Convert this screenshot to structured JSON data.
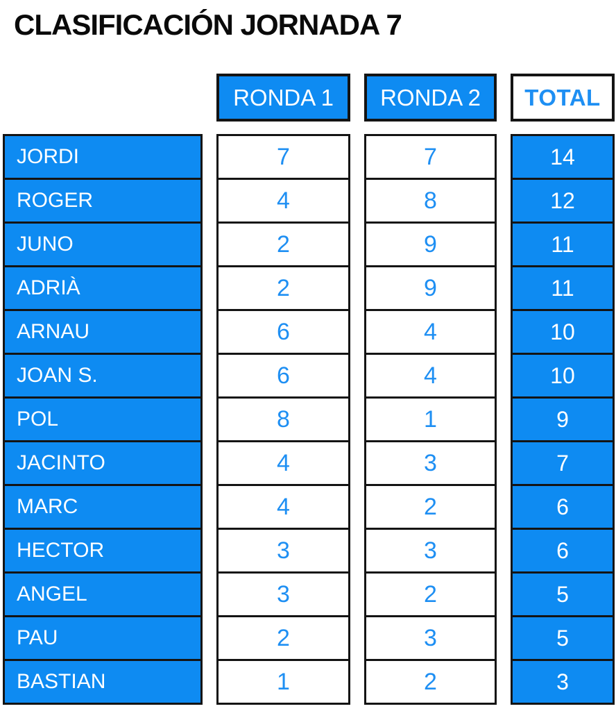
{
  "title": "CLASIFICACIÓN JORNADA 7",
  "colors": {
    "accent_blue": "#0e8bf2",
    "text_blue": "#1e8ff3",
    "border_black": "#141414",
    "white": "#ffffff"
  },
  "table": {
    "headers": {
      "ronda1": "RONDA 1",
      "ronda2": "RONDA 2",
      "total": "TOTAL"
    },
    "rows": [
      {
        "name": "JORDI",
        "ronda1": 7,
        "ronda2": 7,
        "total": 14
      },
      {
        "name": "ROGER",
        "ronda1": 4,
        "ronda2": 8,
        "total": 12
      },
      {
        "name": "JUNO",
        "ronda1": 2,
        "ronda2": 9,
        "total": 11
      },
      {
        "name": "ADRIÀ",
        "ronda1": 2,
        "ronda2": 9,
        "total": 11
      },
      {
        "name": "ARNAU",
        "ronda1": 6,
        "ronda2": 4,
        "total": 10
      },
      {
        "name": "JOAN S.",
        "ronda1": 6,
        "ronda2": 4,
        "total": 10
      },
      {
        "name": "POL",
        "ronda1": 8,
        "ronda2": 1,
        "total": 9
      },
      {
        "name": "JACINTO",
        "ronda1": 4,
        "ronda2": 3,
        "total": 7
      },
      {
        "name": "MARC",
        "ronda1": 4,
        "ronda2": 2,
        "total": 6
      },
      {
        "name": "HECTOR",
        "ronda1": 3,
        "ronda2": 3,
        "total": 6
      },
      {
        "name": "ANGEL",
        "ronda1": 3,
        "ronda2": 2,
        "total": 5
      },
      {
        "name": "PAU",
        "ronda1": 2,
        "ronda2": 3,
        "total": 5
      },
      {
        "name": "BASTIAN",
        "ronda1": 1,
        "ronda2": 2,
        "total": 3
      }
    ]
  },
  "chart_data": {
    "type": "table",
    "title": "CLASIFICACIÓN JORNADA 7",
    "columns": [
      "",
      "RONDA 1",
      "RONDA 2",
      "TOTAL"
    ],
    "rows": [
      [
        "JORDI",
        7,
        7,
        14
      ],
      [
        "ROGER",
        4,
        8,
        12
      ],
      [
        "JUNO",
        2,
        9,
        11
      ],
      [
        "ADRIÀ",
        2,
        9,
        11
      ],
      [
        "ARNAU",
        6,
        4,
        10
      ],
      [
        "JOAN S.",
        6,
        4,
        10
      ],
      [
        "POL",
        8,
        1,
        9
      ],
      [
        "JACINTO",
        4,
        3,
        7
      ],
      [
        "MARC",
        4,
        2,
        6
      ],
      [
        "HECTOR",
        3,
        3,
        6
      ],
      [
        "ANGEL",
        3,
        2,
        5
      ],
      [
        "PAU",
        2,
        3,
        5
      ],
      [
        "BASTIAN",
        1,
        2,
        3
      ]
    ],
    "layout": {
      "header_style": "blue background white text; TOTAL header white background blue bold text",
      "body_style": "player names blue cells white text; round values white cells blue text; totals blue cells white text",
      "grid": "black 3px cell borders, collapsed between rows"
    }
  }
}
